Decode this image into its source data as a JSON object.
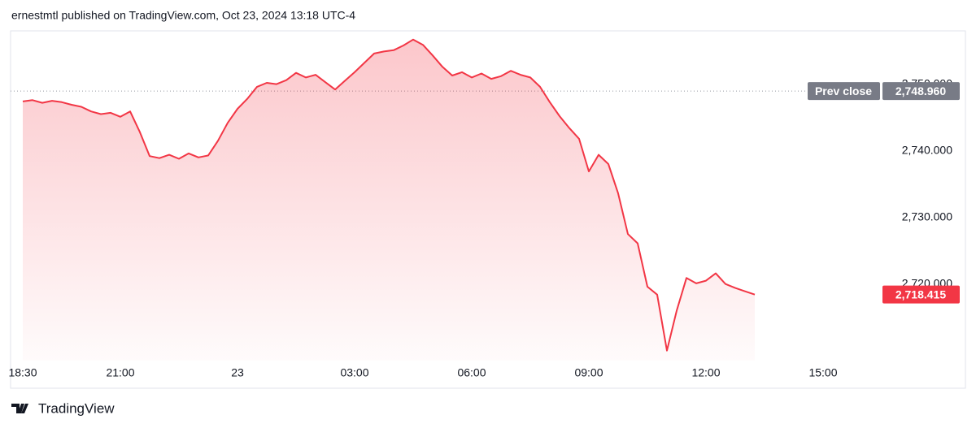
{
  "header": "ernestmtl published on TradingView.com, Oct 23, 2024 13:18 UTC-4",
  "footer": "TradingView",
  "chart_data": {
    "type": "area",
    "color": "#f23645",
    "x": [
      "18:30",
      "18:45",
      "19:00",
      "19:15",
      "19:30",
      "19:45",
      "20:00",
      "20:15",
      "20:30",
      "20:45",
      "21:00",
      "21:15",
      "21:30",
      "21:45",
      "22:00",
      "22:15",
      "22:30",
      "22:45",
      "23:00",
      "23:15",
      "23:30",
      "23:45",
      "23",
      "00:15",
      "00:30",
      "00:45",
      "01:00",
      "01:15",
      "01:30",
      "01:45",
      "02:00",
      "02:15",
      "02:30",
      "02:45",
      "03:00",
      "03:15",
      "03:30",
      "03:45",
      "04:00",
      "04:15",
      "04:30",
      "04:45",
      "05:00",
      "05:15",
      "05:30",
      "05:45",
      "06:00",
      "06:15",
      "06:30",
      "06:45",
      "07:00",
      "07:15",
      "07:30",
      "07:45",
      "08:00",
      "08:15",
      "08:30",
      "08:45",
      "09:00",
      "09:15",
      "09:30",
      "09:45",
      "10:00",
      "10:15",
      "10:30",
      "10:45",
      "11:00",
      "11:15",
      "11:30",
      "11:45",
      "12:00",
      "12:15",
      "12:30",
      "12:45",
      "13:00",
      "13:15"
    ],
    "values": [
      2747.4,
      2747.6,
      2747.2,
      2747.5,
      2747.3,
      2746.9,
      2746.6,
      2745.9,
      2745.5,
      2745.7,
      2745.1,
      2745.9,
      2742.8,
      2739.2,
      2738.9,
      2739.4,
      2738.8,
      2739.6,
      2739.0,
      2739.3,
      2741.5,
      2744.2,
      2746.3,
      2747.8,
      2749.6,
      2750.2,
      2750.0,
      2750.6,
      2751.7,
      2751.0,
      2751.4,
      2750.3,
      2749.2,
      2750.5,
      2751.8,
      2753.2,
      2754.6,
      2754.9,
      2755.1,
      2755.8,
      2756.7,
      2755.9,
      2754.3,
      2752.6,
      2751.3,
      2751.8,
      2751.0,
      2751.6,
      2750.8,
      2751.2,
      2752.0,
      2751.4,
      2751.0,
      2749.6,
      2747.3,
      2745.2,
      2743.4,
      2741.8,
      2736.9,
      2739.4,
      2738.0,
      2733.6,
      2727.5,
      2726.1,
      2719.6,
      2718.4,
      2710.0,
      2716.0,
      2720.9,
      2720.1,
      2720.5,
      2721.6,
      2720.0,
      2719.4,
      2718.9,
      2718.415
    ],
    "xticks": [
      "18:30",
      "21:00",
      "23",
      "03:00",
      "06:00",
      "09:00",
      "12:00",
      "15:00"
    ],
    "ylim": [
      2708.5,
      2758.0
    ],
    "yticks": [
      {
        "value": 2720,
        "label": "2,720.000"
      },
      {
        "value": 2730,
        "label": "2,730.000"
      },
      {
        "value": 2740,
        "label": "2,740.000"
      },
      {
        "value": 2750,
        "label": "2,750.000"
      }
    ],
    "prev_close": {
      "name": "Prev close",
      "value": 2748.96,
      "label": "2,748.960"
    },
    "last_price": {
      "value": 2718.415,
      "label": "2,718.415"
    }
  }
}
